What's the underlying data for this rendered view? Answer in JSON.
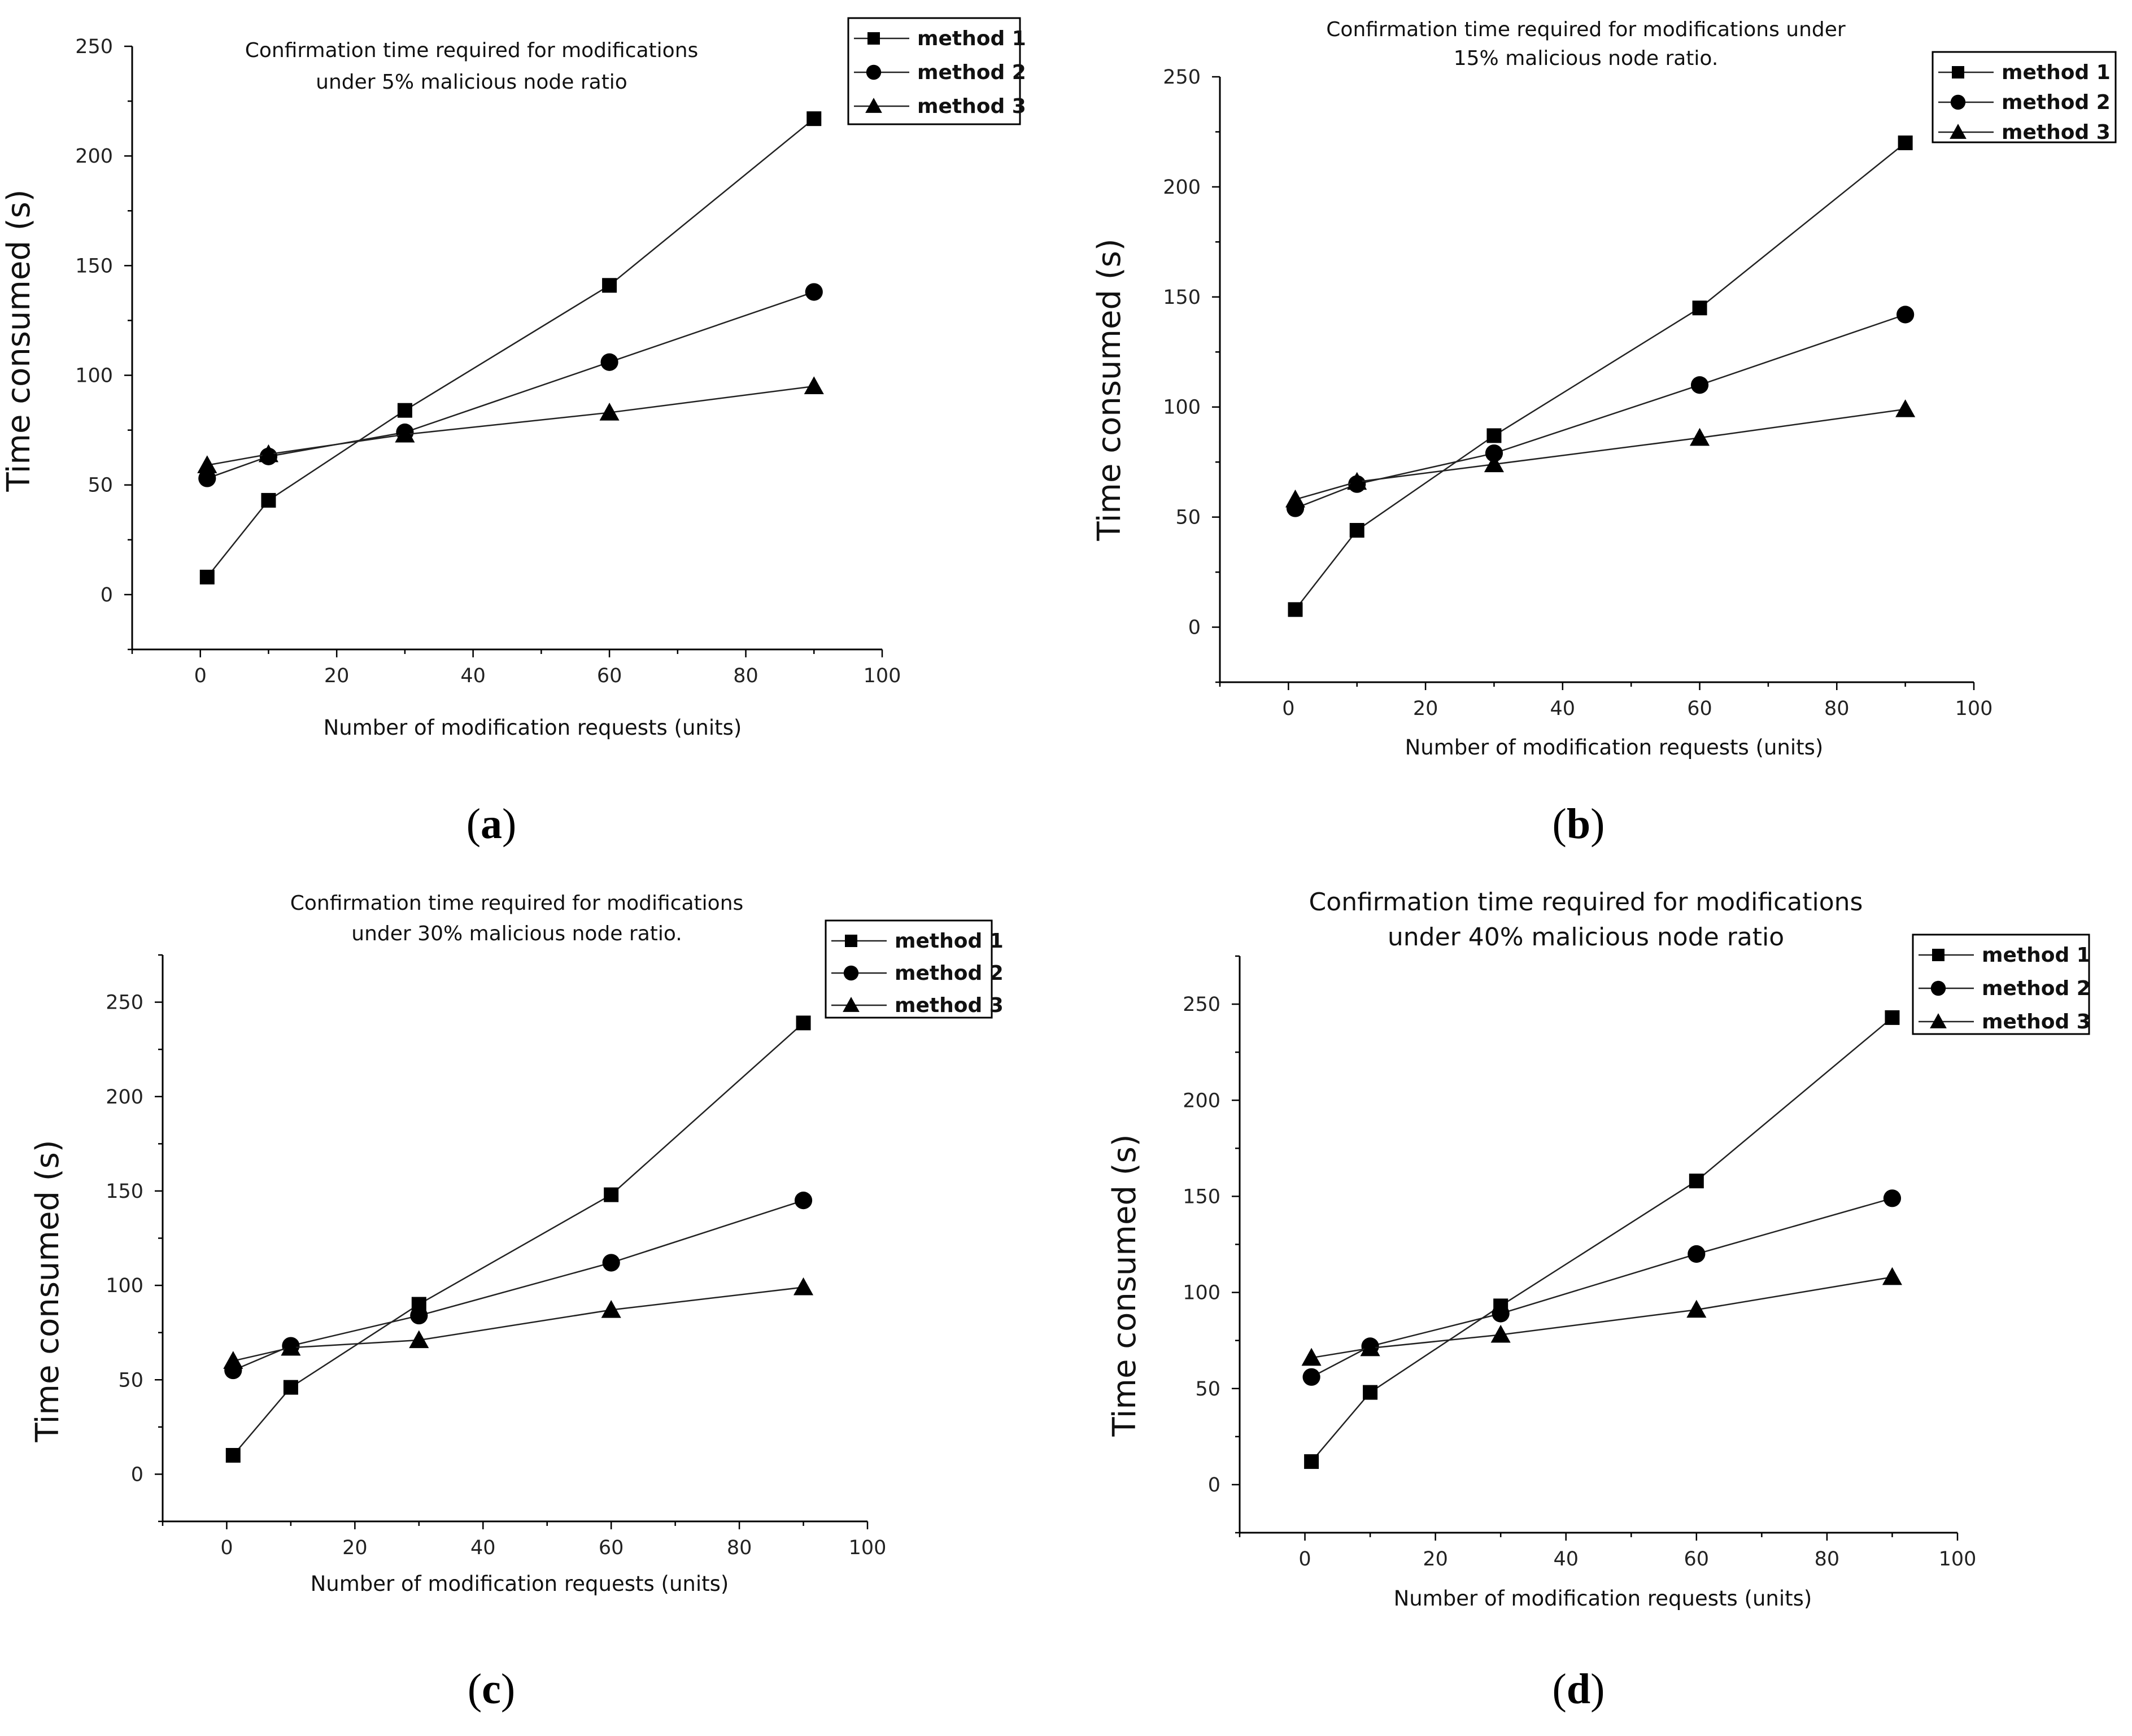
{
  "figure": {
    "panels": [
      {
        "label": "(a)",
        "letter": "a"
      },
      {
        "label": "(b)",
        "letter": "b"
      },
      {
        "label": "(c)",
        "letter": "c"
      },
      {
        "label": "(d)",
        "letter": "d"
      }
    ]
  },
  "chart_data": [
    {
      "type": "line",
      "title_lines": [
        "Confirmation time required for modifications",
        "under 5% malicious node ratio"
      ],
      "xlabel": "Number of modification requests (units)",
      "ylabel": "Time consumed (s)",
      "xlim": [
        -10,
        100
      ],
      "ylim": [
        -25,
        250
      ],
      "xticks": [
        0,
        20,
        40,
        60,
        80,
        100
      ],
      "yticks": [
        0,
        50,
        100,
        150,
        200,
        250
      ],
      "legend_position": "top-right",
      "x": [
        1,
        10,
        30,
        60,
        90
      ],
      "series": [
        {
          "name": "method 1",
          "marker": "square",
          "values": [
            8,
            43,
            84,
            141,
            217
          ]
        },
        {
          "name": "method 2",
          "marker": "circle",
          "values": [
            53,
            63,
            74,
            106,
            138
          ]
        },
        {
          "name": "method 3",
          "marker": "triangle",
          "values": [
            59,
            64,
            73,
            83,
            95
          ]
        }
      ]
    },
    {
      "type": "line",
      "title_lines": [
        "Confirmation time required for modifications under",
        "15% malicious node ratio."
      ],
      "xlabel": "Number of modification requests (units)",
      "ylabel": "Time consumed (s)",
      "xlim": [
        -10,
        100
      ],
      "ylim": [
        -25,
        250
      ],
      "xticks": [
        0,
        20,
        40,
        60,
        80,
        100
      ],
      "yticks": [
        0,
        50,
        100,
        150,
        200,
        250
      ],
      "legend_position": "top-right",
      "x": [
        1,
        10,
        30,
        60,
        90
      ],
      "series": [
        {
          "name": "method 1",
          "marker": "square",
          "values": [
            8,
            44,
            87,
            145,
            220
          ]
        },
        {
          "name": "method 2",
          "marker": "circle",
          "values": [
            54,
            65,
            79,
            110,
            142
          ]
        },
        {
          "name": "method 3",
          "marker": "triangle",
          "values": [
            58,
            66,
            74,
            86,
            99
          ]
        }
      ]
    },
    {
      "type": "line",
      "title_lines": [
        "Confirmation time required for modifications",
        "under 30% malicious node ratio."
      ],
      "xlabel": "Number of modification requests (units)",
      "ylabel": "Time consumed (s)",
      "xlim": [
        -10,
        100
      ],
      "ylim": [
        -25,
        275
      ],
      "xticks": [
        0,
        20,
        40,
        60,
        80,
        100
      ],
      "yticks": [
        0,
        50,
        100,
        150,
        200,
        250
      ],
      "legend_position": "top-right",
      "x": [
        1,
        10,
        30,
        60,
        90
      ],
      "series": [
        {
          "name": "method 1",
          "marker": "square",
          "values": [
            10,
            46,
            90,
            148,
            239
          ]
        },
        {
          "name": "method 2",
          "marker": "circle",
          "values": [
            55,
            68,
            84,
            112,
            145
          ]
        },
        {
          "name": "method 3",
          "marker": "triangle",
          "values": [
            60,
            67,
            71,
            87,
            99
          ]
        }
      ]
    },
    {
      "type": "line",
      "title_lines": [
        "Confirmation time required for modifications",
        "under 40% malicious node ratio"
      ],
      "xlabel": "Number of modification requests (units)",
      "ylabel": "Time consumed (s)",
      "xlim": [
        -10,
        100
      ],
      "ylim": [
        -25,
        275
      ],
      "xticks": [
        0,
        20,
        40,
        60,
        80,
        100
      ],
      "yticks": [
        0,
        50,
        100,
        150,
        200,
        250
      ],
      "legend_position": "top-right",
      "x": [
        1,
        10,
        30,
        60,
        90
      ],
      "series": [
        {
          "name": "method 1",
          "marker": "square",
          "values": [
            12,
            48,
            93,
            158,
            243
          ]
        },
        {
          "name": "method 2",
          "marker": "circle",
          "values": [
            56,
            72,
            89,
            120,
            149
          ]
        },
        {
          "name": "method 3",
          "marker": "triangle",
          "values": [
            66,
            71,
            78,
            91,
            108
          ]
        }
      ]
    }
  ]
}
